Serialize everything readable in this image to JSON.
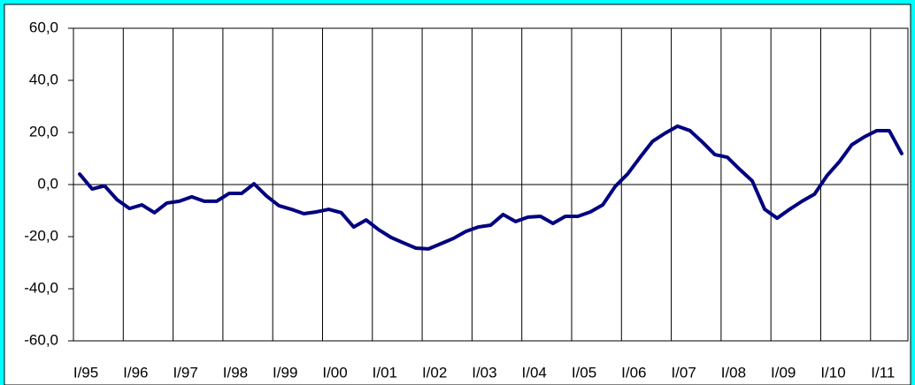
{
  "chart_data": {
    "type": "line",
    "categories": [
      "I/95",
      null,
      null,
      null,
      "I/96",
      null,
      null,
      null,
      "I/97",
      null,
      null,
      null,
      "I/98",
      null,
      null,
      null,
      "I/99",
      null,
      null,
      null,
      "I/00",
      null,
      null,
      null,
      "I/01",
      null,
      null,
      null,
      "I/02",
      null,
      null,
      null,
      "I/03",
      null,
      null,
      null,
      "I/04",
      null,
      null,
      null,
      "I/05",
      null,
      null,
      null,
      "I/06",
      null,
      null,
      null,
      "I/07",
      null,
      null,
      null,
      "I/08",
      null,
      null,
      null,
      "I/09",
      null,
      null,
      null,
      "I/10",
      null,
      null,
      null,
      "I/11",
      null,
      null
    ],
    "values": [
      4.0,
      -1.7,
      -0.5,
      -5.8,
      -9.2,
      -7.8,
      -10.8,
      -7.1,
      -6.4,
      -4.7,
      -6.4,
      -6.4,
      -3.4,
      -3.4,
      0.3,
      -4.4,
      -8.1,
      -9.5,
      -11.2,
      -10.5,
      -9.5,
      -10.8,
      -16.3,
      -13.6,
      -17.3,
      -20.3,
      -22.4,
      -24.4,
      -24.7,
      -22.7,
      -20.7,
      -18.0,
      -16.3,
      -15.6,
      -11.5,
      -14.2,
      -12.5,
      -12.2,
      -14.9,
      -12.2,
      -12.2,
      -10.5,
      -7.8,
      -0.7,
      4.1,
      10.5,
      16.6,
      19.7,
      22.4,
      20.7,
      16.3,
      11.5,
      10.5,
      5.8,
      1.4,
      -9.5,
      -12.9,
      -9.5,
      -6.4,
      -3.7,
      3.4,
      8.8,
      15.3,
      18.3,
      20.7,
      20.7,
      11.9
    ],
    "color": "#000080",
    "ylim": [
      -60,
      60
    ],
    "yticks": [
      {
        "value": -60,
        "label": "-60,0"
      },
      {
        "value": -40,
        "label": "-40,0"
      },
      {
        "value": -20,
        "label": "-20,0"
      },
      {
        "value": 0,
        "label": "0,0"
      },
      {
        "value": 20,
        "label": "20,0"
      },
      {
        "value": 40,
        "label": "40,0"
      },
      {
        "value": 60,
        "label": "60,0"
      }
    ]
  }
}
